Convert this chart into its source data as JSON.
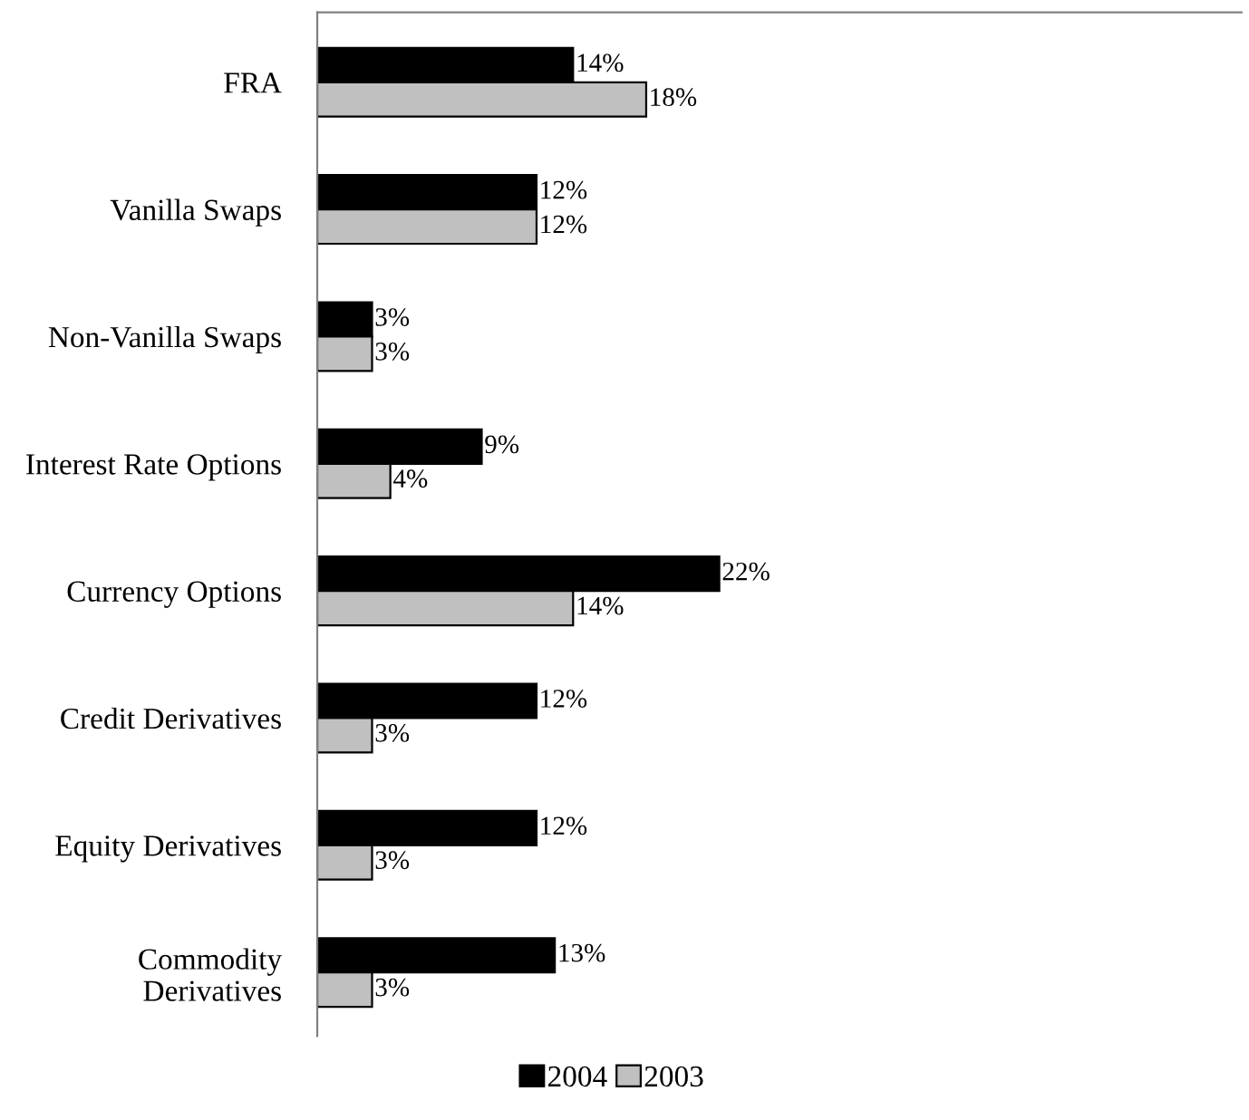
{
  "chart_data": {
    "type": "bar",
    "orientation": "horizontal",
    "categories": [
      "FRA",
      "Vanilla Swaps",
      "Non-Vanilla Swaps",
      "Interest Rate Options",
      "Currency Options",
      "Credit Derivatives",
      "Equity Derivatives",
      "Commodity\nDerivatives"
    ],
    "series": [
      {
        "name": "2004",
        "color": "#000000",
        "values": [
          14,
          12,
          3,
          9,
          22,
          12,
          12,
          13
        ],
        "value_labels": [
          "14%",
          "12%",
          "3%",
          "9%",
          "22%",
          "12%",
          "12%",
          "13%"
        ]
      },
      {
        "name": "2003",
        "color": "#c0c0c0",
        "values": [
          18,
          12,
          3,
          4,
          14,
          3,
          3,
          3
        ],
        "value_labels": [
          "18%",
          "12%",
          "3%",
          "4%",
          "14%",
          "3%",
          "3%",
          "3%"
        ]
      }
    ],
    "tick_labels": "y",
    "legend": "bottom",
    "grid": false
  }
}
